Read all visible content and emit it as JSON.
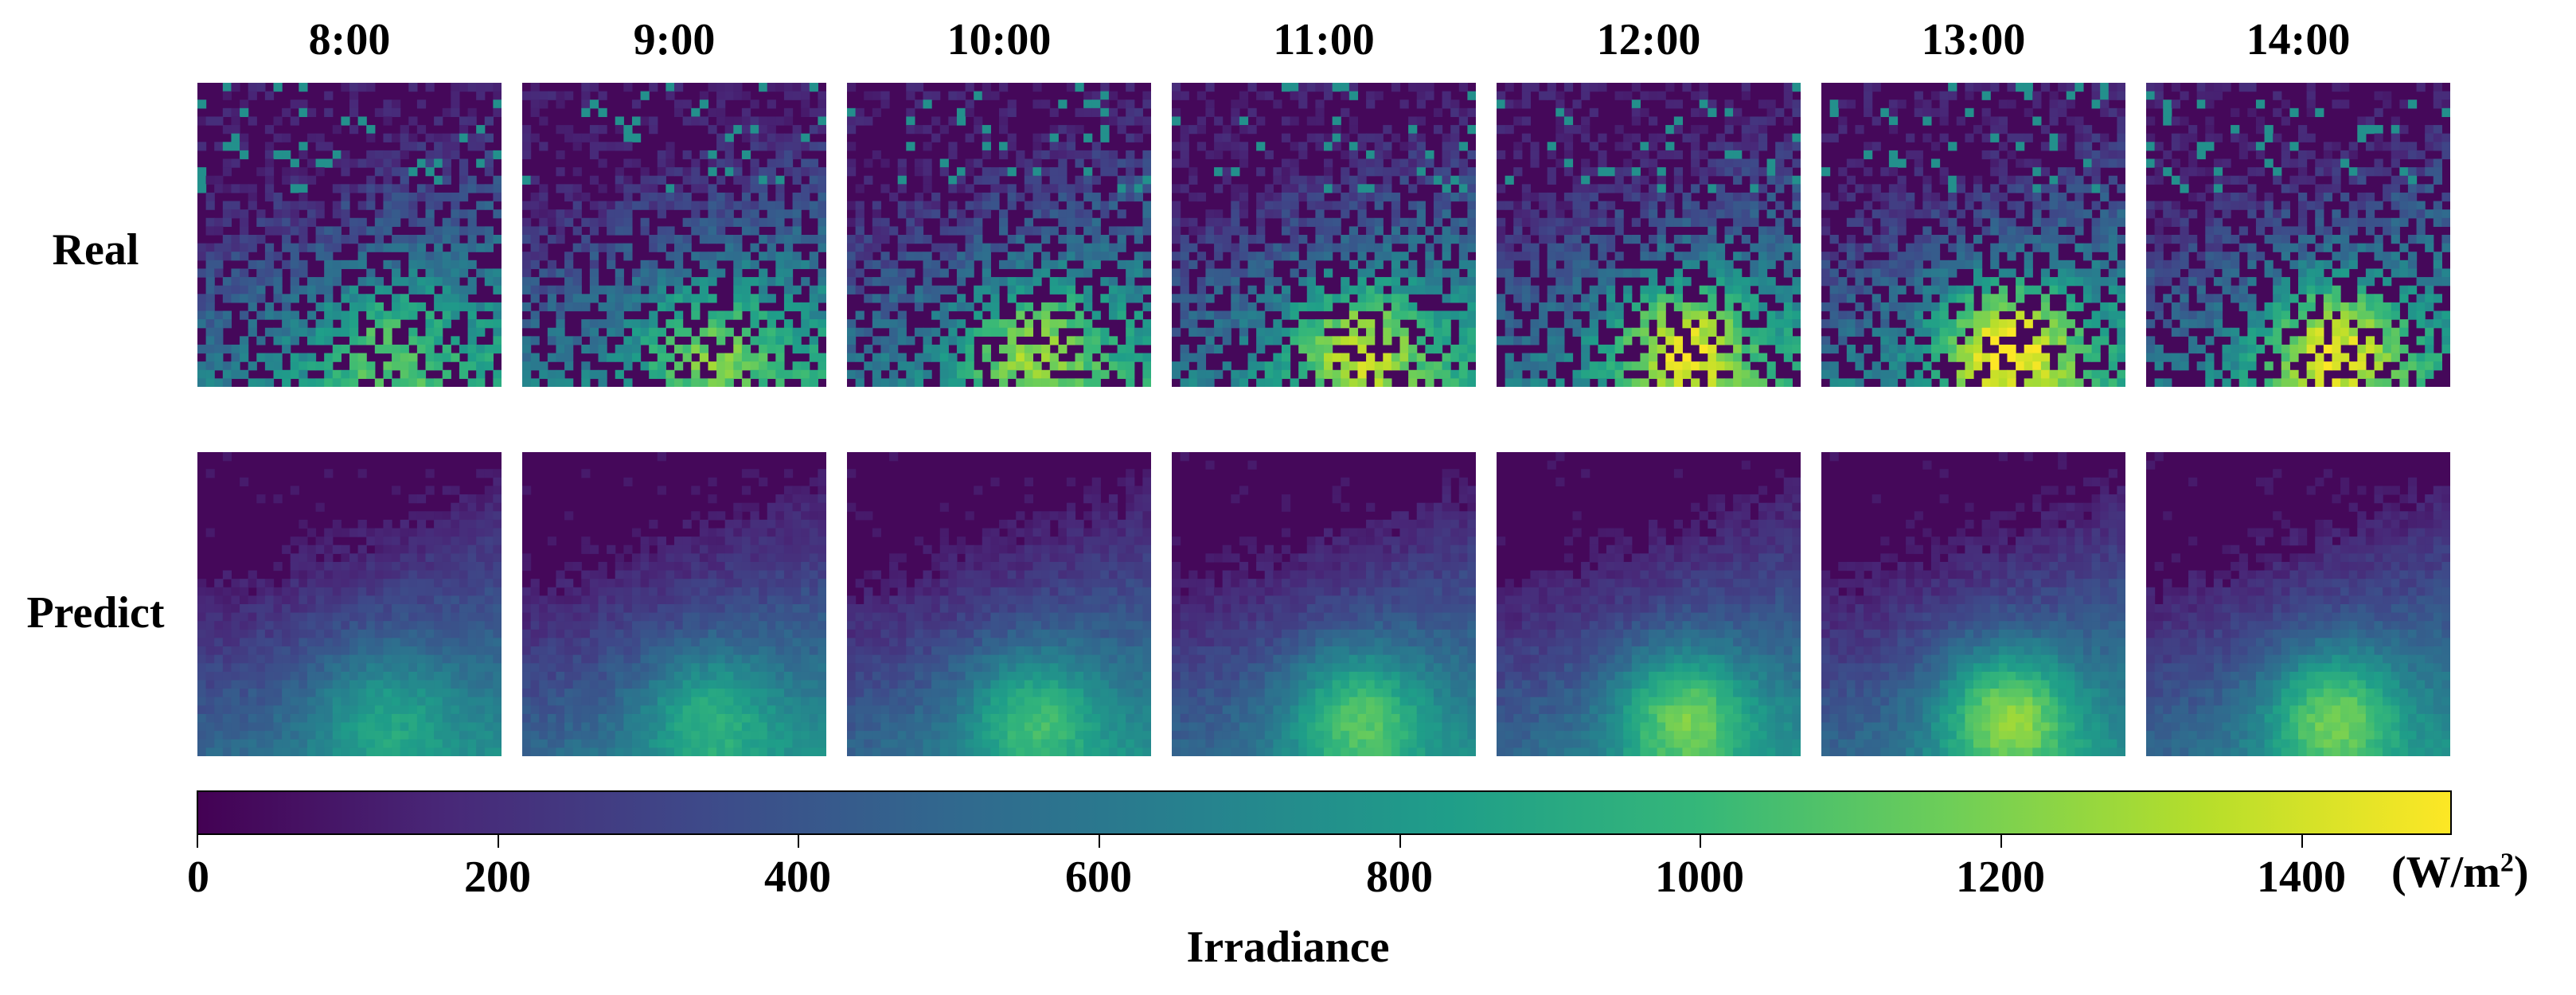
{
  "columns": [
    "8:00",
    "9:00",
    "10:00",
    "11:00",
    "12:00",
    "13:00",
    "14:00"
  ],
  "rows": [
    "Real",
    "Predict"
  ],
  "colorbar": {
    "label": "Irradiance",
    "unit": "(W/m",
    "unit_sup": "2",
    "unit_close": ")",
    "range": [
      0,
      1500
    ],
    "ticks": [
      "0",
      "200",
      "400",
      "600",
      "800",
      "1000",
      "1200",
      "1400"
    ],
    "colormap": "viridis",
    "stops": [
      "#440154",
      "#482878",
      "#3e4989",
      "#31688e",
      "#26828e",
      "#1f9e89",
      "#35b779",
      "#6ece58",
      "#b5de2b",
      "#fde725"
    ]
  }
}
